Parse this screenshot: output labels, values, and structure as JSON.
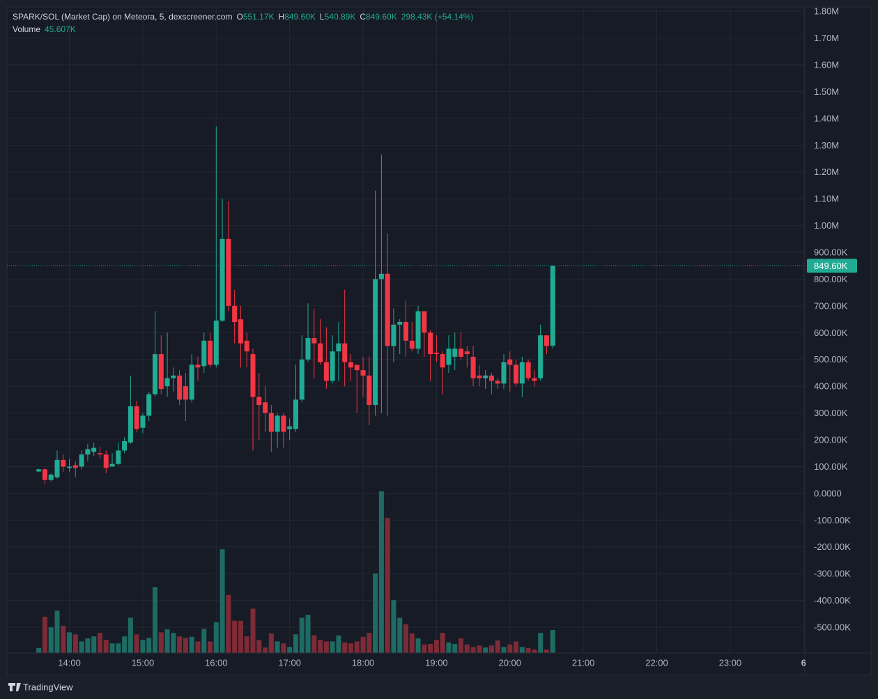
{
  "chart_data": {
    "type": "candlestick",
    "title": "SPARK/SOL (Market Cap) on Meteora, 5, dexscreener.com",
    "legend": [
      {
        "key": "O",
        "label": "551.17K"
      },
      {
        "key": "H",
        "label": "849.60K"
      },
      {
        "key": "L",
        "label": "540.89K"
      },
      {
        "key": "C",
        "label": "849.60K"
      }
    ],
    "change_label": "298.43K (+54.14%)",
    "last_price_label": "849.60K",
    "up_color": "#22ab94",
    "down_color": "#f23645",
    "x": [
      815,
      820,
      825,
      830,
      835,
      840,
      845,
      850,
      855,
      860,
      865,
      870,
      875,
      880,
      885,
      890,
      895,
      900,
      905,
      910,
      915,
      920,
      925,
      930,
      935,
      940,
      945,
      950,
      955,
      960,
      965,
      970,
      975,
      980,
      985,
      990,
      995,
      1000,
      1005,
      1010,
      1015,
      1020,
      1025,
      1030,
      1035,
      1040,
      1045,
      1050,
      1055,
      1060,
      1065,
      1070,
      1075,
      1080,
      1085,
      1090,
      1095,
      1100,
      1105,
      1110,
      1115,
      1120,
      1125,
      1130,
      1135,
      1140,
      1145,
      1150,
      1155,
      1160,
      1165,
      1170,
      1175,
      1180,
      1185,
      1190,
      1195,
      1200,
      1205,
      1210,
      1215,
      1220,
      1225,
      1230,
      1235
    ],
    "open": [
      82000,
      90000,
      50000,
      60000,
      125000,
      95000,
      105000,
      100000,
      145000,
      155000,
      150000,
      145000,
      100000,
      110000,
      160000,
      190000,
      325000,
      245000,
      290000,
      370000,
      520000,
      400000,
      430000,
      440000,
      400000,
      350000,
      480000,
      475000,
      570000,
      480000,
      645000,
      950000,
      700000,
      650000,
      570000,
      520000,
      360000,
      340000,
      300000,
      230000,
      290000,
      240000,
      240000,
      350000,
      500000,
      580000,
      560000,
      490000,
      420000,
      530000,
      560000,
      490000,
      480000,
      460000,
      440000,
      330000,
      800000,
      820000,
      550000,
      630000,
      640000,
      570000,
      540000,
      680000,
      600000,
      525000,
      520000,
      480000,
      510000,
      540000,
      530000,
      510000,
      440000,
      430000,
      440000,
      420000,
      410000,
      500000,
      480000,
      410000,
      490000,
      430000,
      430000,
      590000,
      551170
    ],
    "high": [
      92000,
      95000,
      75000,
      160000,
      145000,
      130000,
      120000,
      160000,
      185000,
      190000,
      175000,
      160000,
      150000,
      190000,
      210000,
      440000,
      345000,
      300000,
      380000,
      680000,
      590000,
      600000,
      470000,
      460000,
      450000,
      520000,
      510000,
      600000,
      600000,
      1370000,
      1100000,
      1090000,
      760000,
      700000,
      600000,
      540000,
      450000,
      400000,
      330000,
      300000,
      300000,
      280000,
      480000,
      590000,
      710000,
      690000,
      650000,
      620000,
      590000,
      640000,
      760000,
      520000,
      480000,
      510000,
      510000,
      1130000,
      1265000,
      970000,
      690000,
      650000,
      720000,
      640000,
      700000,
      680000,
      610000,
      590000,
      530000,
      590000,
      600000,
      600000,
      550000,
      550000,
      480000,
      460000,
      450000,
      430000,
      520000,
      530000,
      500000,
      510000,
      500000,
      460000,
      630000,
      590000,
      849600
    ],
    "low": [
      80000,
      35000,
      45000,
      55000,
      80000,
      80000,
      60000,
      90000,
      120000,
      140000,
      130000,
      75000,
      100000,
      105000,
      150000,
      185000,
      230000,
      225000,
      270000,
      360000,
      370000,
      360000,
      380000,
      330000,
      270000,
      340000,
      420000,
      450000,
      470000,
      470000,
      640000,
      680000,
      560000,
      470000,
      470000,
      160000,
      200000,
      230000,
      155000,
      170000,
      170000,
      200000,
      230000,
      340000,
      490000,
      430000,
      480000,
      390000,
      410000,
      420000,
      400000,
      420000,
      300000,
      360000,
      255000,
      290000,
      300000,
      290000,
      490000,
      520000,
      510000,
      530000,
      520000,
      510000,
      420000,
      490000,
      370000,
      450000,
      460000,
      500000,
      470000,
      400000,
      400000,
      390000,
      370000,
      390000,
      390000,
      380000,
      400000,
      360000,
      420000,
      400000,
      420000,
      520000,
      540890
    ],
    "close": [
      90000,
      50000,
      70000,
      125000,
      100000,
      100000,
      95000,
      145000,
      165000,
      170000,
      145000,
      95000,
      110000,
      160000,
      195000,
      325000,
      240000,
      290000,
      370000,
      520000,
      390000,
      430000,
      440000,
      350000,
      350000,
      480000,
      470000,
      570000,
      480000,
      645000,
      950000,
      700000,
      640000,
      560000,
      530000,
      360000,
      330000,
      300000,
      230000,
      290000,
      230000,
      250000,
      350000,
      500000,
      580000,
      560000,
      490000,
      420000,
      530000,
      560000,
      490000,
      470000,
      460000,
      440000,
      330000,
      800000,
      820000,
      550000,
      630000,
      640000,
      570000,
      540000,
      680000,
      600000,
      520000,
      520000,
      470000,
      540000,
      540000,
      510000,
      520000,
      430000,
      430000,
      440000,
      420000,
      410000,
      490000,
      480000,
      410000,
      490000,
      430000,
      420000,
      590000,
      550000,
      849600
    ],
    "volume": {
      "name": "Volume",
      "last_value_label": "45.607K",
      "up_color": "#1d6b62",
      "down_color": "#7d2b37",
      "values": [
        10000,
        72000,
        51000,
        84000,
        54000,
        41000,
        37000,
        23000,
        29000,
        33000,
        40000,
        26000,
        19000,
        19000,
        33000,
        70000,
        37000,
        26000,
        30000,
        131000,
        41000,
        47000,
        40000,
        33000,
        30000,
        32000,
        23000,
        48000,
        23000,
        61000,
        206000,
        115000,
        64000,
        64000,
        33000,
        88000,
        26000,
        11000,
        39000,
        23000,
        19000,
        12000,
        37000,
        70000,
        76000,
        35000,
        26000,
        23000,
        23000,
        35000,
        21000,
        19000,
        23000,
        32000,
        40000,
        158000,
        321000,
        268000,
        105000,
        70000,
        57000,
        39000,
        29000,
        17000,
        18000,
        26000,
        40000,
        21000,
        18000,
        29000,
        17000,
        12000,
        15000,
        11000,
        15000,
        25000,
        12000,
        17000,
        23000,
        12000,
        10000,
        7000,
        40000,
        7000,
        45607
      ]
    },
    "xlim": [
      789,
      1441
    ],
    "xticks": [
      {
        "value": 840,
        "label": "14:00"
      },
      {
        "value": 900,
        "label": "15:00"
      },
      {
        "value": 960,
        "label": "16:00"
      },
      {
        "value": 1020,
        "label": "17:00"
      },
      {
        "value": 1080,
        "label": "18:00"
      },
      {
        "value": 1140,
        "label": "19:00"
      },
      {
        "value": 1200,
        "label": "20:00"
      },
      {
        "value": 1260,
        "label": "21:00"
      },
      {
        "value": 1320,
        "label": "22:00"
      },
      {
        "value": 1380,
        "label": "23:00"
      },
      {
        "value": 1440,
        "label": "6"
      }
    ],
    "ylim": [
      -596000,
      1816000
    ],
    "yticks": [
      {
        "value": 1800000,
        "label": "1.80M"
      },
      {
        "value": 1700000,
        "label": "1.70M"
      },
      {
        "value": 1600000,
        "label": "1.60M"
      },
      {
        "value": 1500000,
        "label": "1.50M"
      },
      {
        "value": 1400000,
        "label": "1.40M"
      },
      {
        "value": 1300000,
        "label": "1.30M"
      },
      {
        "value": 1200000,
        "label": "1.20M"
      },
      {
        "value": 1100000,
        "label": "1.10M"
      },
      {
        "value": 1000000,
        "label": "1.00M"
      },
      {
        "value": 900000,
        "label": "900.00K"
      },
      {
        "value": 800000,
        "label": "800.00K"
      },
      {
        "value": 700000,
        "label": "700.00K"
      },
      {
        "value": 600000,
        "label": "600.00K"
      },
      {
        "value": 500000,
        "label": "500.00K"
      },
      {
        "value": 400000,
        "label": "400.00K"
      },
      {
        "value": 300000,
        "label": "300.00K"
      },
      {
        "value": 200000,
        "label": "200.00K"
      },
      {
        "value": 100000,
        "label": "100.00K"
      },
      {
        "value": 0,
        "label": "0.0000"
      },
      {
        "value": -100000,
        "label": "-100.00K"
      },
      {
        "value": -200000,
        "label": "-200.00K"
      },
      {
        "value": -300000,
        "label": "-300.00K"
      },
      {
        "value": -400000,
        "label": "-400.00K"
      },
      {
        "value": -500000,
        "label": "-500.00K"
      }
    ],
    "grid": true
  },
  "footer": {
    "brand": "TradingView"
  }
}
